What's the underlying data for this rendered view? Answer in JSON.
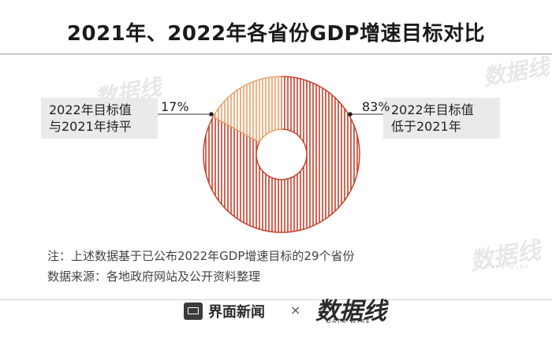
{
  "title": "2021年、2022年各省份GDP增速目标对比",
  "chart_data": {
    "type": "pie",
    "donut": true,
    "slices": [
      {
        "label": "2022年目标值低于2021年",
        "label_lines": [
          "2022年目标值",
          "低于2021年"
        ],
        "value": 83,
        "value_label": "83%",
        "color": "#c8402a"
      },
      {
        "label": "2022年目标值与2021年持平",
        "label_lines": [
          "2022年目标值",
          "与2021年持平"
        ],
        "value": 17,
        "value_label": "17%",
        "color": "#e8a06a"
      }
    ]
  },
  "notes": {
    "note": "注：上述数据基于已公布2022年GDP增速目标的29个省份",
    "source": "数据来源：各地政府网站及公开资料整理"
  },
  "footer": {
    "brand": "界面新闻",
    "separator": "×",
    "logo": "数据线",
    "logo_sub": "DATA WIRE"
  },
  "watermark": {
    "text": "数据线",
    "sub": "DATA WIRE"
  }
}
